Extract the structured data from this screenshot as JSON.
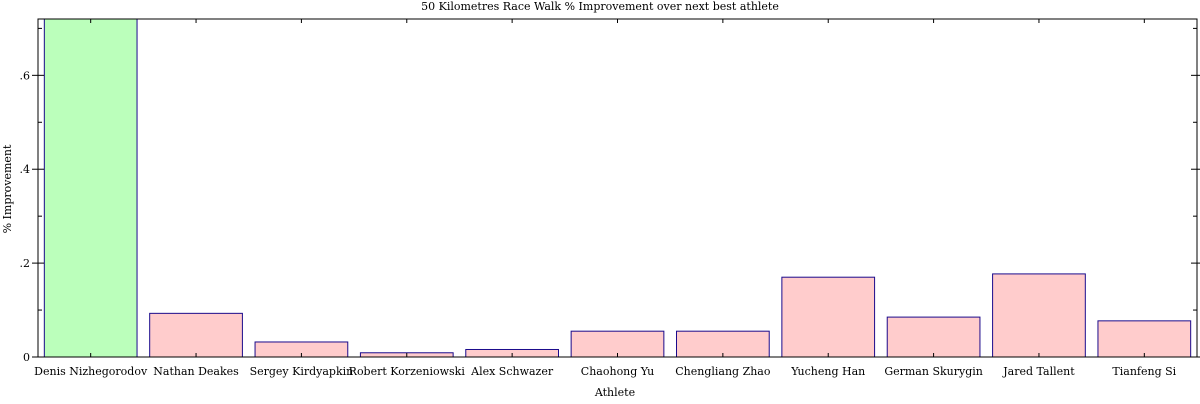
{
  "chart_data": {
    "type": "bar",
    "title": "50 Kilometres Race Walk % Improvement over next best athlete",
    "xlabel": "Athlete",
    "ylabel": "% Improvement",
    "ylim": [
      0,
      0.72
    ],
    "yticks": [
      {
        "value": 0,
        "label": "0"
      },
      {
        "value": 0.2,
        "label": ".2"
      },
      {
        "value": 0.4,
        "label": ".4"
      },
      {
        "value": 0.6,
        "label": ".6"
      }
    ],
    "categories": [
      "Denis Nizhegorodov",
      "Nathan Deakes",
      "Sergey Kirdyapkin",
      "Robert Korzeniowski",
      "Alex Schwazer",
      "Chaohong Yu",
      "Chengliang Zhao",
      "Yucheng Han",
      "German Skurygin",
      "Jared Tallent",
      "Tianfeng Si"
    ],
    "values": [
      0.72,
      0.093,
      0.032,
      0.009,
      0.016,
      0.055,
      0.055,
      0.17,
      0.085,
      0.177,
      0.077
    ],
    "highlight_index": 0,
    "colors": {
      "highlight_fill": "#bbffbb",
      "bar_fill": "#ffcccc",
      "bar_stroke": "#1a0a8c",
      "axis": "#000000"
    },
    "grid": false
  }
}
